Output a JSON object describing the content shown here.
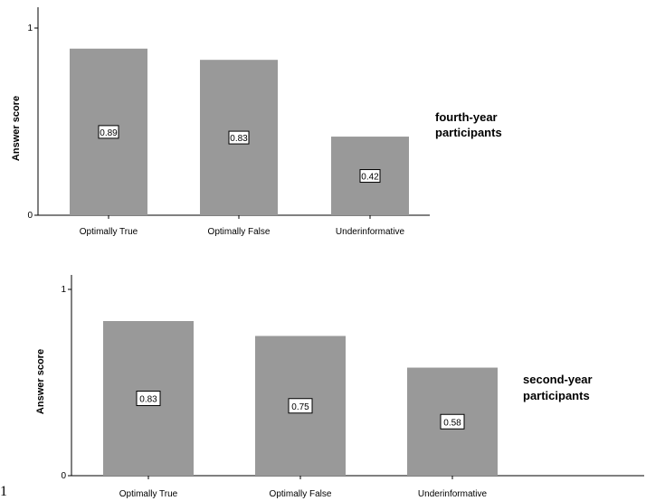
{
  "chart_data": [
    {
      "type": "bar",
      "categories": [
        "Optimally True",
        "Optimally False",
        "Underinformative"
      ],
      "values": [
        0.89,
        0.83,
        0.42
      ],
      "data_labels": [
        "0.89",
        "0.83",
        "0.42"
      ],
      "ylabel": "Answer score",
      "ylim": [
        0,
        1
      ],
      "yticks": [
        "0",
        "1"
      ],
      "annotation": [
        "fourth-year",
        "participants"
      ],
      "bar_color": "#999999",
      "grid": false
    },
    {
      "type": "bar",
      "categories": [
        "Optimally True",
        "Optimally False",
        "Underinformative"
      ],
      "values": [
        0.83,
        0.75,
        0.58
      ],
      "data_labels": [
        "0.83",
        "0.75",
        "0.58"
      ],
      "ylabel": "Answer score",
      "ylim": [
        0,
        1
      ],
      "yticks": [
        "0",
        "1"
      ],
      "annotation": [
        "second-year",
        "participants"
      ],
      "bar_color": "#999999",
      "grid": false
    }
  ],
  "stray_text": "1"
}
